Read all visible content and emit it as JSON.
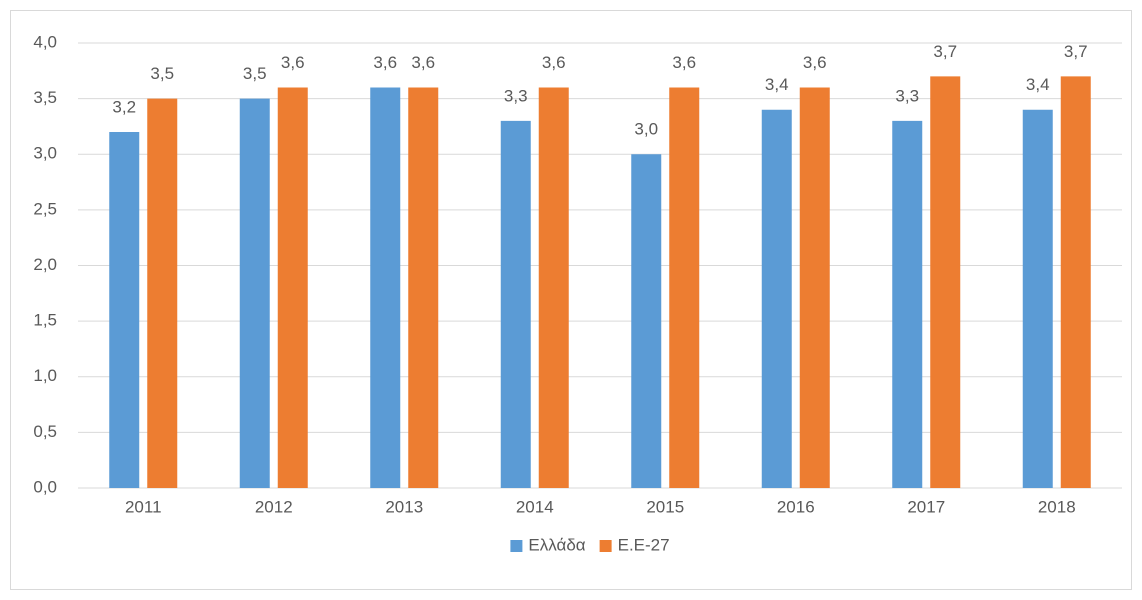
{
  "chart_data": {
    "type": "bar",
    "categories": [
      "2011",
      "2012",
      "2013",
      "2014",
      "2015",
      "2016",
      "2017",
      "2018"
    ],
    "series": [
      {
        "name": "Ελλάδα",
        "color": "#5b9bd5",
        "values": [
          3.2,
          3.5,
          3.6,
          3.3,
          3.0,
          3.4,
          3.3,
          3.4
        ],
        "value_labels": [
          "3,2",
          "3,5",
          "3,6",
          "3,3",
          "3,0",
          "3,4",
          "3,3",
          "3,4"
        ]
      },
      {
        "name": "Ε.Ε-27",
        "color": "#ed7d31",
        "values": [
          3.5,
          3.6,
          3.6,
          3.6,
          3.6,
          3.6,
          3.7,
          3.7
        ],
        "value_labels": [
          "3,5",
          "3,6",
          "3,6",
          "3,6",
          "3,6",
          "3,6",
          "3,7",
          "3,7"
        ]
      }
    ],
    "ylim": [
      0,
      4
    ],
    "yticks": [
      {
        "value": 0,
        "label": "0,0"
      },
      {
        "value": 0.5,
        "label": "0,5"
      },
      {
        "value": 1,
        "label": "1,0"
      },
      {
        "value": 1.5,
        "label": "1,5"
      },
      {
        "value": 2,
        "label": "2,0"
      },
      {
        "value": 2.5,
        "label": "2,5"
      },
      {
        "value": 3,
        "label": "3,0"
      },
      {
        "value": 3.5,
        "label": "3,5"
      },
      {
        "value": 4,
        "label": "4,0"
      }
    ],
    "grid": true,
    "legend": "bottom"
  }
}
